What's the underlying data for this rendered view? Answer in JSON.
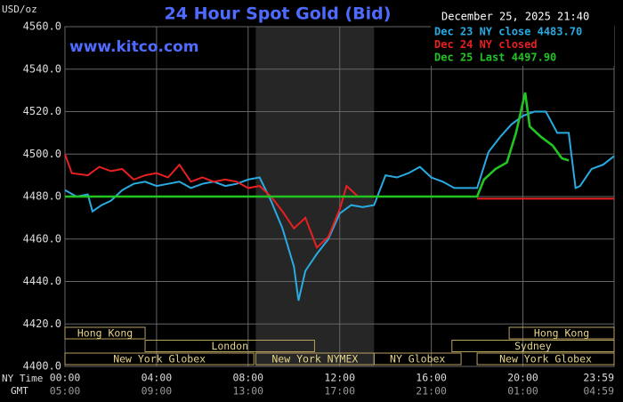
{
  "chart_data": {
    "type": "line",
    "title": "24 Hour Spot Gold (Bid)",
    "y_label": "USD/oz",
    "watermark": "www.kitco.com",
    "timestamp": "December 25, 2025 21:40",
    "x_label": "NY Time",
    "x2_label": "GMT",
    "xlim": [
      0,
      23.983
    ],
    "ylim": [
      4400,
      4560
    ],
    "yticks": [
      {
        "value": 4400,
        "label": "4400.0"
      },
      {
        "value": 4420,
        "label": "4420.0"
      },
      {
        "value": 4440,
        "label": "4440.0"
      },
      {
        "value": 4460,
        "label": "4460.0"
      },
      {
        "value": 4480,
        "label": "4480.0"
      },
      {
        "value": 4500,
        "label": "4500.0"
      },
      {
        "value": 4520,
        "label": "4520.0"
      },
      {
        "value": 4540,
        "label": "4540.0"
      },
      {
        "value": 4560,
        "label": "4560.0"
      }
    ],
    "xticks": [
      {
        "value": 0,
        "label": "00:00"
      },
      {
        "value": 4,
        "label": "04:00"
      },
      {
        "value": 8,
        "label": "08:00"
      },
      {
        "value": 12,
        "label": "12:00"
      },
      {
        "value": 16,
        "label": "16:00"
      },
      {
        "value": 20,
        "label": "20:00"
      },
      {
        "value": 23.983,
        "label": "23:59"
      }
    ],
    "x2ticks": [
      {
        "value": 0,
        "label": "05:00"
      },
      {
        "value": 4,
        "label": "09:00"
      },
      {
        "value": 8,
        "label": "13:00"
      },
      {
        "value": 12,
        "label": "17:00"
      },
      {
        "value": 16,
        "label": "21:00"
      },
      {
        "value": 20,
        "label": "01:00"
      },
      {
        "value": 23.983,
        "label": "04:59"
      }
    ],
    "grid": true,
    "shaded_range": [
      8.333,
      13.5
    ],
    "sessions": [
      [
        {
          "label": "Hong Kong",
          "start": 0,
          "end": 3.5
        },
        {
          "label": "Hong Kong",
          "start": 19.4,
          "end": 23.983
        }
      ],
      [
        {
          "label": "London",
          "start": 3.5,
          "end": 10.9
        },
        {
          "label": "Sydney",
          "start": 16.9,
          "end": 23.983
        }
      ],
      [
        {
          "label": "New York Globex",
          "start": 0,
          "end": 8.25
        },
        {
          "label": "New York NYMEX",
          "start": 8.333,
          "end": 13.5
        },
        {
          "label": "NY Globex",
          "start": 13.5,
          "end": 17.3
        },
        {
          "label": "New York Globex",
          "start": 18,
          "end": 23.983
        }
      ]
    ],
    "series": [
      {
        "name": "Dec 23 NY close 4483.70",
        "color": "#29abe2",
        "x": [
          0,
          0.5,
          1,
          1.2,
          1.6,
          2,
          2.5,
          3,
          3.5,
          4,
          4.5,
          5,
          5.5,
          6,
          6.5,
          7,
          7.5,
          8,
          8.5,
          9,
          9.5,
          10,
          10.2,
          10.5,
          11,
          11.5,
          12,
          12.5,
          13,
          13.5,
          14,
          14.5,
          15,
          15.5,
          16,
          16.5,
          17,
          17.5,
          18,
          18.5,
          19,
          19.5,
          20,
          20.5,
          21,
          21.5,
          22,
          22.3,
          22.5,
          23,
          23.5,
          23.983
        ],
        "values": [
          4483,
          4480,
          4481,
          4473,
          4476,
          4478,
          4483,
          4486,
          4487,
          4485,
          4486,
          4487,
          4484,
          4486,
          4487,
          4485,
          4486,
          4488,
          4489,
          4478,
          4465,
          4447,
          4431,
          4445,
          4453,
          4460,
          4472,
          4476,
          4475,
          4476,
          4490,
          4489,
          4491,
          4494,
          4489,
          4487,
          4484,
          4484,
          4484,
          4501,
          4508,
          4514,
          4518,
          4520,
          4520,
          4510,
          4510,
          4484,
          4485,
          4493,
          4495,
          4499
        ]
      },
      {
        "name": "Dec 24 NY closed",
        "color": "#e82020",
        "x": [
          0,
          0.3,
          1,
          1.5,
          2,
          2.5,
          3,
          3.5,
          4,
          4.5,
          5,
          5.5,
          6,
          6.5,
          7,
          7.5,
          8,
          8.5,
          9,
          9.5,
          10,
          10.5,
          11,
          11.5,
          12,
          12.3,
          12.8,
          15,
          18,
          23.983
        ],
        "values": [
          4500,
          4491,
          4490,
          4494,
          4492,
          4493,
          4488,
          4490,
          4491,
          4489,
          4495,
          4487,
          4489,
          4487,
          4488,
          4487,
          4484,
          4485,
          4480,
          4473,
          4465,
          4470,
          4456,
          4461,
          4474,
          4485,
          4480,
          null,
          4479,
          4479
        ]
      },
      {
        "name": "Dec 25 Last 4497.90",
        "color": "#22c422",
        "x": [
          0,
          18,
          18.3,
          18.8,
          19.3,
          19.7,
          20.1,
          20.3,
          20.8,
          21.3,
          21.7,
          22
        ],
        "values": [
          4480,
          4480,
          4488,
          4493,
          4496,
          4510,
          4529,
          4513,
          4508,
          4504,
          4498,
          4497
        ]
      }
    ]
  }
}
